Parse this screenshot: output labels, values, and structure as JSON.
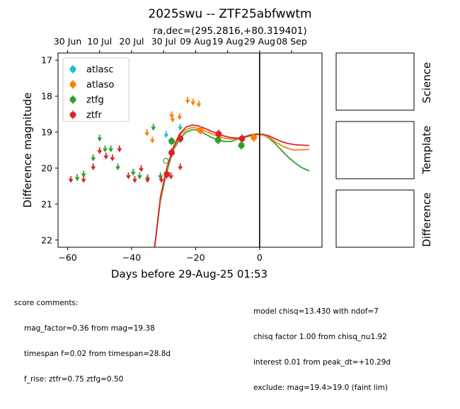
{
  "title": "2025swu -- ZTF25abfwwtm",
  "subtitle": "ra,dec=(295.2816,+80.319401)",
  "chart_data": {
    "type": "scatter",
    "xlabel": "Days before 29-Aug-25 01:53",
    "ylabel": "Difference magnitude",
    "xlim": [
      -63,
      19.5
    ],
    "ylim": [
      22.2,
      16.8
    ],
    "y_inverted": true,
    "x_ticks": [
      -60,
      -40,
      -20,
      0
    ],
    "y_ticks": [
      17,
      18,
      19,
      20,
      21,
      22
    ],
    "top_ticks": [
      {
        "x": -60,
        "label": "30 Jun"
      },
      {
        "x": -50,
        "label": "10 Jul"
      },
      {
        "x": -40,
        "label": "20 Jul"
      },
      {
        "x": -30,
        "label": "30 Jul"
      },
      {
        "x": -20,
        "label": "09 Aug"
      },
      {
        "x": -10,
        "label": "19 Aug"
      },
      {
        "x": 0,
        "label": "29 Aug"
      },
      {
        "x": 10,
        "label": "08 Sep"
      }
    ],
    "vline_x": 0,
    "legend_position": "upper-left",
    "series": [
      {
        "name": "atlasc",
        "color": "#17becf",
        "detections": [],
        "upper_limits": [
          [
            -29.2,
            19.05
          ],
          [
            -24.8,
            18.85
          ]
        ]
      },
      {
        "name": "atlaso",
        "color": "#ff7f0e",
        "detections": [
          [
            -18.5,
            18.95
          ],
          [
            -1.8,
            19.15
          ]
        ],
        "upper_limits": [
          [
            -35.2,
            19.0
          ],
          [
            -33.5,
            19.2
          ],
          [
            -27.5,
            18.5
          ],
          [
            -27.2,
            18.62
          ],
          [
            -25.0,
            18.55
          ],
          [
            -22.5,
            18.1
          ],
          [
            -20.8,
            18.15
          ],
          [
            -19.0,
            18.2
          ]
        ]
      },
      {
        "name": "ztfg",
        "color": "#2ca02c",
        "detections": [
          [
            -27.5,
            19.25
          ],
          [
            -13.0,
            19.22
          ],
          [
            -5.7,
            19.37
          ]
        ],
        "hollow": [
          [
            -29.3,
            19.8
          ]
        ],
        "upper_limits": [
          [
            -57.0,
            20.25
          ],
          [
            -55.0,
            20.15
          ],
          [
            -52.0,
            19.7
          ],
          [
            -50.0,
            19.15
          ],
          [
            -48.3,
            19.45
          ],
          [
            -46.5,
            19.45
          ],
          [
            -44.3,
            19.95
          ],
          [
            -39.5,
            20.1
          ],
          [
            -37.5,
            20.2
          ],
          [
            -35.0,
            20.25
          ],
          [
            -33.2,
            18.85
          ],
          [
            -31.0,
            20.2
          ]
        ]
      },
      {
        "name": "ztfr",
        "color": "#d62728",
        "detections": [
          [
            -29.0,
            20.17
          ],
          [
            -27.5,
            19.57
          ],
          [
            -24.8,
            19.18
          ],
          [
            -12.8,
            19.05
          ],
          [
            -5.5,
            19.18
          ]
        ],
        "upper_limits": [
          [
            -59.0,
            20.3
          ],
          [
            -55.0,
            20.3
          ],
          [
            -52.0,
            19.95
          ],
          [
            -50.0,
            19.5
          ],
          [
            -48.0,
            19.65
          ],
          [
            -46.0,
            19.7
          ],
          [
            -43.8,
            19.45
          ],
          [
            -41.0,
            20.2
          ],
          [
            -39.0,
            20.3
          ],
          [
            -37.0,
            20.0
          ],
          [
            -35.0,
            20.3
          ],
          [
            -30.7,
            20.3
          ],
          [
            -27.7,
            20.2
          ],
          [
            -24.8,
            19.95
          ]
        ]
      }
    ],
    "curves": [
      {
        "color": "#2ca02c",
        "points": [
          [
            -32.8,
            22.2
          ],
          [
            -31,
            20.9
          ],
          [
            -29,
            20.1
          ],
          [
            -27,
            19.5
          ],
          [
            -25,
            19.2
          ],
          [
            -23,
            19.0
          ],
          [
            -21,
            18.93
          ],
          [
            -19,
            18.95
          ],
          [
            -17,
            19.05
          ],
          [
            -15,
            19.15
          ],
          [
            -13,
            19.22
          ],
          [
            -11,
            19.26
          ],
          [
            -9,
            19.26
          ],
          [
            -7,
            19.2
          ],
          [
            -5,
            19.13
          ],
          [
            -3,
            19.08
          ],
          [
            -1,
            19.05
          ],
          [
            1,
            19.07
          ],
          [
            3,
            19.17
          ],
          [
            5,
            19.33
          ],
          [
            7,
            19.52
          ],
          [
            9,
            19.7
          ],
          [
            11,
            19.85
          ],
          [
            13,
            19.98
          ],
          [
            15.5,
            20.08
          ]
        ]
      },
      {
        "color": "#ff7f0e",
        "points": [
          [
            -32.8,
            22.2
          ],
          [
            -31,
            20.85
          ],
          [
            -29,
            20.05
          ],
          [
            -27,
            19.45
          ],
          [
            -25,
            19.1
          ],
          [
            -23,
            18.93
          ],
          [
            -21,
            18.87
          ],
          [
            -19,
            18.9
          ],
          [
            -17,
            18.97
          ],
          [
            -15,
            19.05
          ],
          [
            -13,
            19.12
          ],
          [
            -11,
            19.17
          ],
          [
            -9,
            19.19
          ],
          [
            -7,
            19.18
          ],
          [
            -5,
            19.14
          ],
          [
            -3,
            19.1
          ],
          [
            -1,
            19.07
          ],
          [
            1,
            19.08
          ],
          [
            3,
            19.15
          ],
          [
            5,
            19.27
          ],
          [
            7,
            19.38
          ],
          [
            9,
            19.46
          ],
          [
            11,
            19.5
          ],
          [
            13,
            19.49
          ],
          [
            15.5,
            19.48
          ]
        ]
      },
      {
        "color": "#d62728",
        "points": [
          [
            -32.8,
            22.2
          ],
          [
            -31,
            20.8
          ],
          [
            -29,
            20.0
          ],
          [
            -27,
            19.42
          ],
          [
            -25,
            19.05
          ],
          [
            -23,
            18.86
          ],
          [
            -21,
            18.8
          ],
          [
            -19,
            18.83
          ],
          [
            -17,
            18.9
          ],
          [
            -15,
            18.98
          ],
          [
            -13,
            19.05
          ],
          [
            -11,
            19.11
          ],
          [
            -9,
            19.15
          ],
          [
            -7,
            19.17
          ],
          [
            -5,
            19.15
          ],
          [
            -3,
            19.1
          ],
          [
            -1,
            19.06
          ],
          [
            1,
            19.06
          ],
          [
            3,
            19.11
          ],
          [
            5,
            19.19
          ],
          [
            7,
            19.27
          ],
          [
            9,
            19.32
          ],
          [
            11,
            19.35
          ],
          [
            13,
            19.36
          ],
          [
            15.5,
            19.37
          ]
        ]
      }
    ]
  },
  "side_panels": [
    "Science",
    "Template",
    "Difference"
  ],
  "score_comments": {
    "heading": "score comments:",
    "lines": [
      "mag_factor=0.36 from mag=19.38",
      "timespan f=0.02 from timespan=28.8d",
      "f_rise: ztfr=0.75 ztfg=0.50"
    ]
  },
  "model_comments": {
    "lines": [
      "model chisq=13.430 with ndof=7",
      "chisq factor 1.00 from chisq_nu1.92",
      "interest 0.01 from peak_dt=+10.29d",
      "exclude: mag=19.4>19.0 (faint lim)"
    ]
  }
}
